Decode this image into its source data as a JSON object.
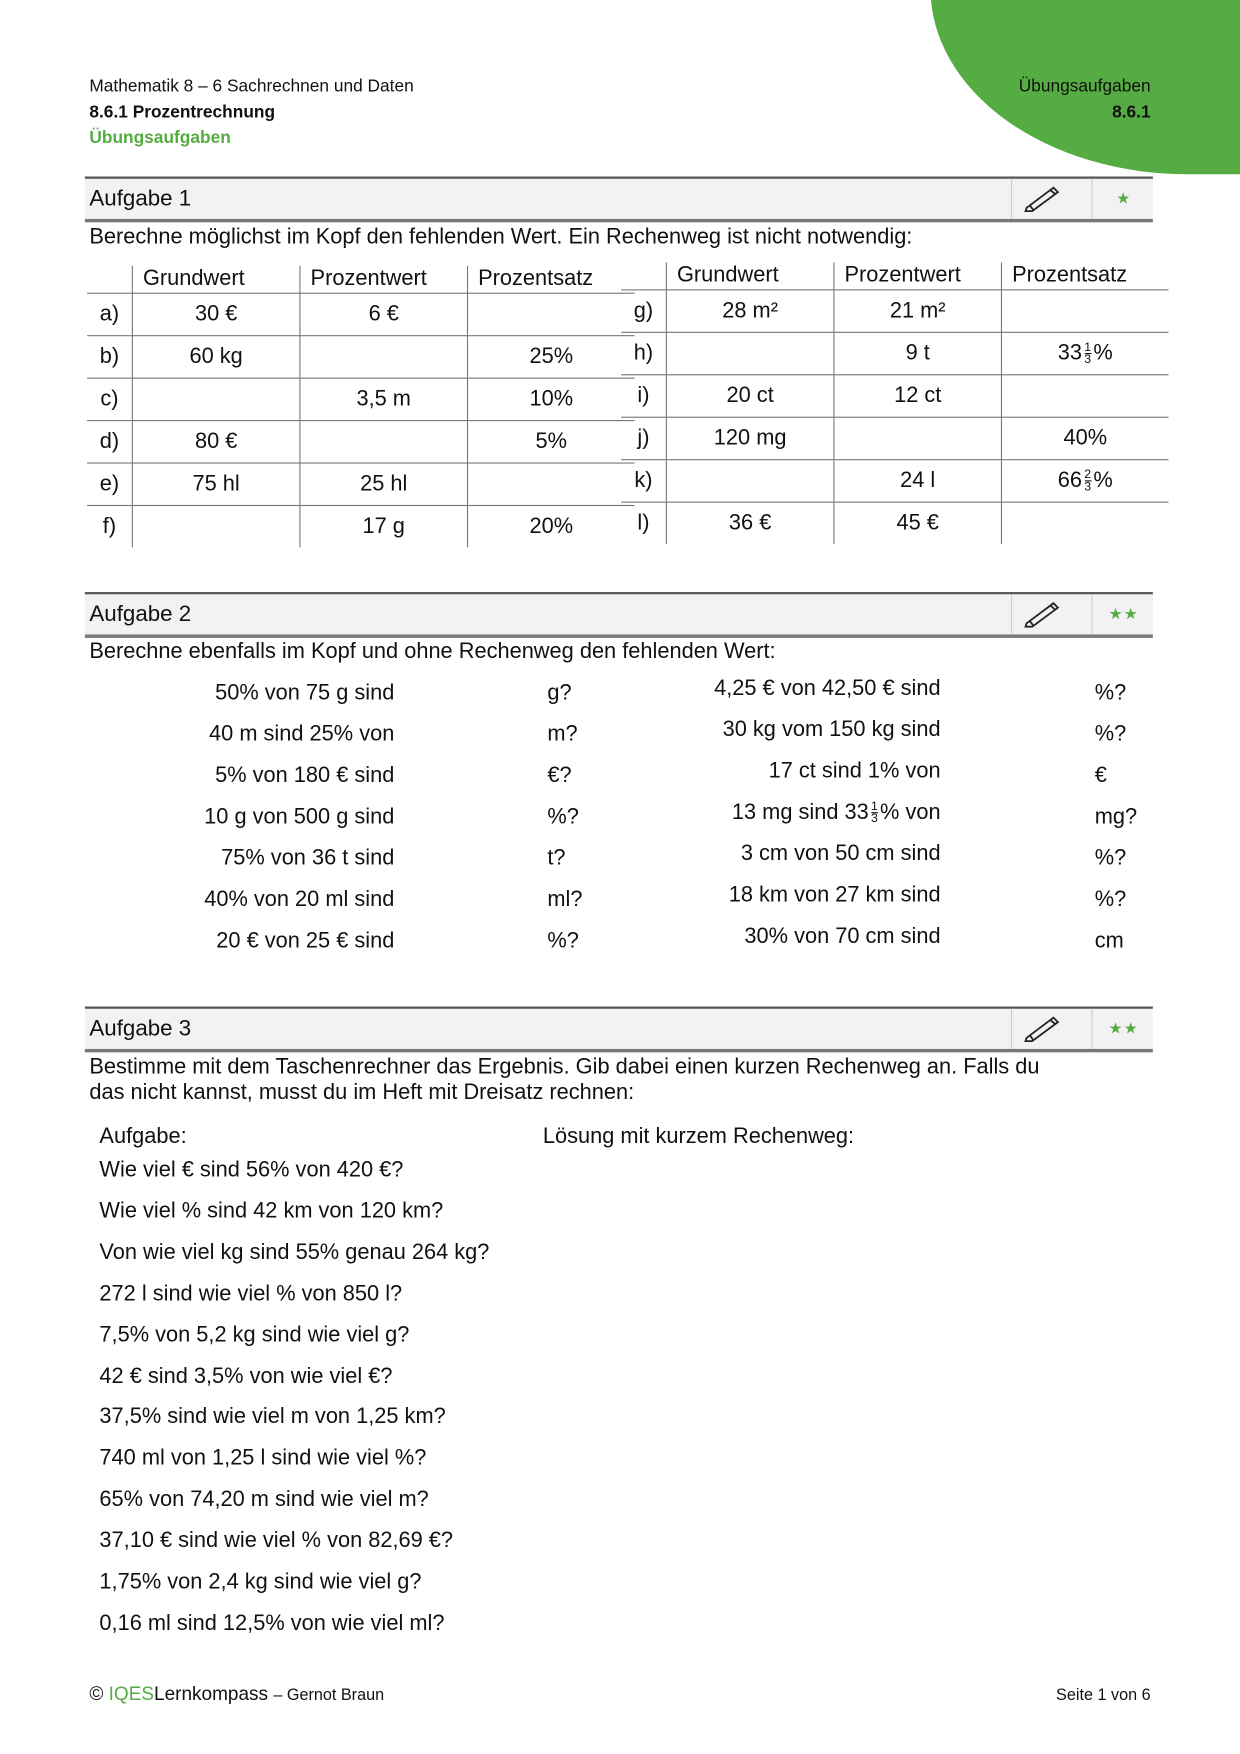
{
  "header": {
    "subject": "Mathematik 8 – 6 Sachrechnen und Daten",
    "chapter": "8.6.1 Prozentrechnung",
    "type": "Übungsaufgaben",
    "right_type": "Übungsaufgaben",
    "right_code": "8.6.1"
  },
  "colors": {
    "accent": "#55ac42"
  },
  "aufgabe1": {
    "title": "Aufgabe 1",
    "difficulty_stars": "★",
    "instruction": "Berechne möglichst im Kopf den fehlenden Wert. Ein Rechenweg ist nicht notwendig:",
    "columns": [
      "Grundwert",
      "Prozentwert",
      "Prozentsatz"
    ],
    "left_rows": [
      [
        "a)",
        "30 €",
        "6 €",
        ""
      ],
      [
        "b)",
        "60 kg",
        "",
        "25%"
      ],
      [
        "c)",
        "",
        "3,5 m",
        "10%"
      ],
      [
        "d)",
        "80 €",
        "",
        "5%"
      ],
      [
        "e)",
        "75 hl",
        "25 hl",
        ""
      ],
      [
        "f)",
        "",
        "17 g",
        "20%"
      ]
    ],
    "right_rows": [
      [
        "g)",
        "28 m²",
        "21 m²",
        ""
      ],
      [
        "h)",
        "",
        "9 t",
        "33 1/3 %"
      ],
      [
        "i)",
        "20 ct",
        "12 ct",
        ""
      ],
      [
        "j)",
        "120 mg",
        "",
        "40%"
      ],
      [
        "k)",
        "",
        "24 l",
        "66 2/3 %"
      ],
      [
        "l)",
        "36 €",
        "45 €",
        ""
      ]
    ]
  },
  "aufgabe2": {
    "title": "Aufgabe 2",
    "difficulty_stars": "★★",
    "instruction": "Berechne ebenfalls im Kopf und ohne Rechenweg den fehlenden Wert:",
    "left": [
      [
        "50% von 75 g sind",
        "g?"
      ],
      [
        "40 m sind 25% von",
        "m?"
      ],
      [
        "5% von 180 € sind",
        "€?"
      ],
      [
        "10 g von 500 g sind",
        "%?"
      ],
      [
        "75% von 36 t sind",
        "t?"
      ],
      [
        "40% von 20 ml sind",
        "ml?"
      ],
      [
        "20 € von 25 € sind",
        "%?"
      ]
    ],
    "right": [
      [
        "4,25 € von 42,50 € sind",
        "%?"
      ],
      [
        "30 kg vom 150 kg sind",
        "%?"
      ],
      [
        "17 ct sind 1% von",
        "€"
      ],
      [
        "13 mg sind 33 1/3 % von",
        "mg?"
      ],
      [
        "3 cm von 50 cm sind",
        "%?"
      ],
      [
        "18 km von 27 km sind",
        "%?"
      ],
      [
        "30% von 70 cm sind",
        "cm"
      ]
    ]
  },
  "aufgabe3": {
    "title": "Aufgabe 3",
    "difficulty_stars": "★★",
    "instruction_1": "Bestimme mit dem Taschenrechner das Ergebnis. Gib dabei einen kurzen Rechenweg an. Falls du",
    "instruction_2": "das nicht kannst, musst du im Heft mit Dreisatz rechnen:",
    "col_task": "Aufgabe:",
    "col_solution": "Lösung mit kurzem Rechenweg:",
    "tasks": [
      "Wie viel € sind 56% von 420 €?",
      "Wie viel % sind 42 km von 120 km?",
      "Von wie viel kg sind 55% genau 264 kg?",
      "272 l sind wie viel % von 850 l?",
      "7,5% von 5,2 kg sind wie viel g?",
      "42 € sind 3,5% von wie viel €?",
      "37,5% sind wie viel m von 1,25 km?",
      "740 ml von 1,25 l sind wie viel %?",
      "65% von 74,20 m sind wie viel m?",
      "37,10 € sind wie viel % von 82,69 €?",
      "1,75% von 2,4 kg sind wie viel g?",
      "0,16 ml sind 12,5% von wie viel ml?"
    ]
  },
  "footer": {
    "copyright": "©",
    "brand_1": "IQES",
    "brand_2": "Lernkompass",
    "author": "– Gernot Braun",
    "page": "Seite 1 von 6"
  }
}
